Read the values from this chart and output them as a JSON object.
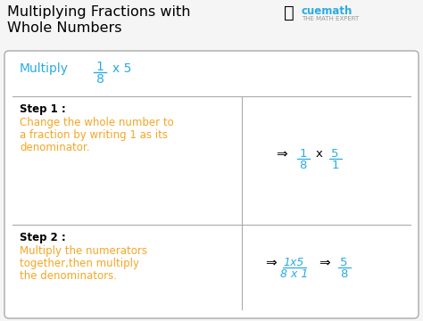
{
  "title_line1": "Multiplying Fractions with",
  "title_line2": "Whole Numbers",
  "title_color": "#000000",
  "title_fontsize": 11.5,
  "bg_color": "#f5f5f5",
  "header_text": "Multiply",
  "header_color": "#29abe2",
  "header_fontsize": 10,
  "step1_label": "Step 1 :",
  "step1_desc_line1": "Change the whole number to",
  "step1_desc_line2": "a fraction by writing 1 as its",
  "step1_desc_line3": "denominator.",
  "step2_label": "Step 2 :",
  "step2_desc_line1": "Multiply the numerators",
  "step2_desc_line2": "together,then multiply",
  "step2_desc_line3": "the denominators.",
  "orange_color": "#f5a623",
  "blue_color": "#29abe2",
  "black_color": "#000000",
  "gray_color": "#888888",
  "box_edge_color": "#aaaaaa",
  "step_label_fontsize": 8.5,
  "step_desc_fontsize": 8.5,
  "math_fontsize": 9.5,
  "arrow_fontsize": 11
}
